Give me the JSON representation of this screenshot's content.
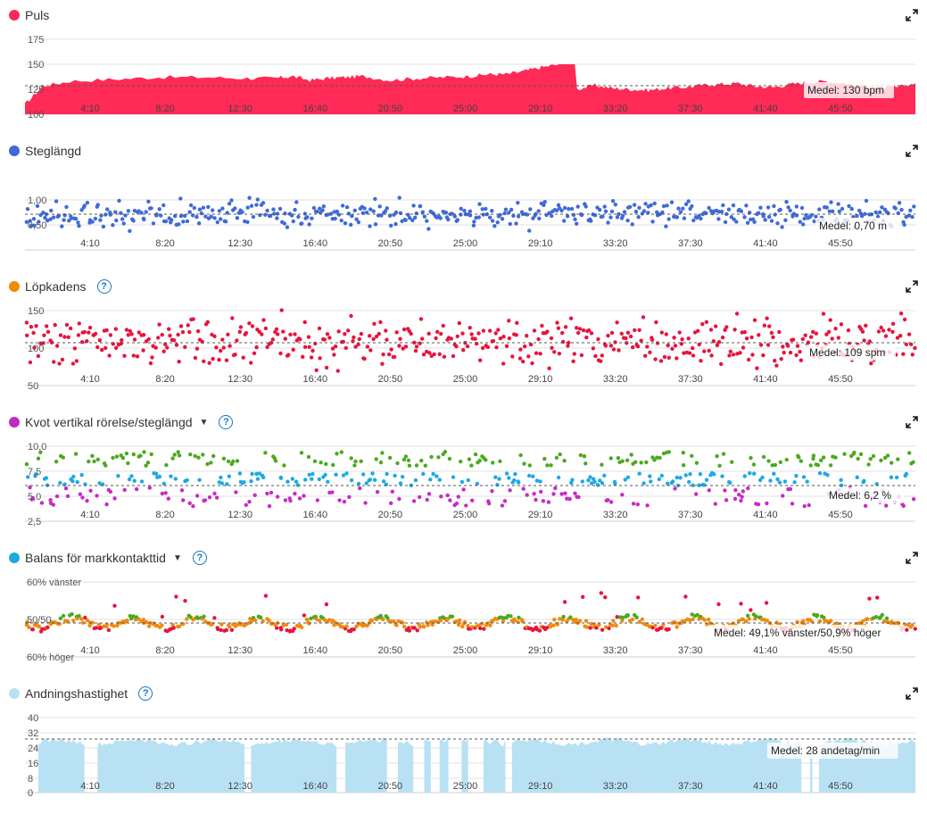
{
  "x_ticks": [
    "4:10",
    "8:20",
    "12:30",
    "16:40",
    "20:50",
    "25:00",
    "29:10",
    "33:20",
    "37:30",
    "41:40",
    "45:50"
  ],
  "colors": {
    "pulse": "#ff2a55",
    "stride": "#3f6ad8",
    "cadence_dot": "#f08a00",
    "cadence": "#e8143d",
    "ratio_dot": "#c02ac4",
    "ratio_green": "#4ca820",
    "ratio_blue": "#1da9e2",
    "ratio_purple": "#c62cc4",
    "balance_dot": "#1da9e2",
    "balance_orange": "#ee8a10",
    "balance_green": "#4ca820",
    "balance_red": "#e8143d",
    "breath": "#b9e1f4",
    "breath_dot": "#b9e1f4",
    "help": "#1a73c8"
  },
  "panels": [
    {
      "id": "puls",
      "title": "Puls",
      "help": false,
      "dropdown": false,
      "yticks": [
        "175",
        "150",
        "125",
        "100"
      ],
      "avg_label": "Medel: 130 bpm"
    },
    {
      "id": "steglangd",
      "title": "Steglängd",
      "help": false,
      "dropdown": false,
      "yticks": [
        "1,00",
        "0,50"
      ],
      "avg_label": "Medel: 0,70 m"
    },
    {
      "id": "lopkadens",
      "title": "Löpkadens",
      "help": true,
      "dropdown": false,
      "yticks": [
        "150",
        "100",
        "50"
      ],
      "avg_label": "Medel: 109 spm"
    },
    {
      "id": "kvot",
      "title": "Kvot vertikal rörelse/steglängd",
      "help": true,
      "dropdown": true,
      "yticks": [
        "10,0",
        "7,5",
        "5,0",
        "2,5"
      ],
      "avg_label": "Medel: 6,2 %"
    },
    {
      "id": "balans",
      "title": "Balans för markkontakttid",
      "help": true,
      "dropdown": true,
      "yticks": [
        "60% vänster",
        "50/50",
        "60% höger"
      ],
      "avg_label": "Medel: 49,1% vänster/50,9% höger"
    },
    {
      "id": "andning",
      "title": "Andningshastighet",
      "help": true,
      "dropdown": false,
      "yticks": [
        "40",
        "32",
        "24",
        "16",
        "8",
        "0"
      ],
      "avg_label": "Medel: 28 andetag/min"
    }
  ],
  "chart_data": [
    {
      "type": "area",
      "title": "Puls",
      "ylim": [
        100,
        175
      ],
      "mean": 130,
      "x_ticks": [
        "4:10",
        "8:20",
        "12:30",
        "16:40",
        "20:50",
        "25:00",
        "29:10",
        "33:20",
        "37:30",
        "41:40",
        "45:50"
      ],
      "series": [
        {
          "name": "Puls",
          "x": [
            0,
            2,
            5,
            10,
            15,
            20,
            25,
            28,
            30,
            32,
            34,
            36,
            38,
            41,
            44,
            47,
            50,
            52,
            54,
            56,
            58,
            60,
            62,
            64,
            66,
            68,
            70,
            72,
            74,
            76,
            78,
            80,
            82,
            84,
            86,
            88,
            90,
            92,
            94,
            96,
            98,
            100
          ],
          "y": [
            110,
            128,
            133,
            135,
            137,
            137,
            136,
            136,
            138,
            134,
            136,
            137,
            138,
            134,
            136,
            137,
            138,
            140,
            140,
            143,
            147,
            150,
            125,
            129,
            126,
            125,
            124,
            126,
            127,
            129,
            130,
            131,
            128,
            127,
            130,
            132,
            133,
            131,
            128,
            126,
            127,
            131
          ]
        }
      ]
    },
    {
      "type": "scatter",
      "title": "Steglängd",
      "ylim": [
        0.25,
        1.25
      ],
      "mean": 0.7,
      "x_ticks": [
        "4:10",
        "8:20",
        "12:30",
        "16:40",
        "20:50",
        "25:00",
        "29:10",
        "33:20",
        "37:30",
        "41:40",
        "45:50"
      ],
      "series": [
        {
          "name": "Steglängd",
          "x_range": [
            0,
            100
          ],
          "y_center": 0.72,
          "y_spread": 0.18
        }
      ]
    },
    {
      "type": "scatter",
      "title": "Löpkadens",
      "ylim": [
        50,
        150
      ],
      "mean": 109,
      "x_ticks": [
        "4:10",
        "8:20",
        "12:30",
        "16:40",
        "20:50",
        "25:00",
        "29:10",
        "33:20",
        "37:30",
        "41:40",
        "45:50"
      ],
      "series": [
        {
          "name": "Löpkadens",
          "x_range": [
            0,
            100
          ],
          "y_center": 110,
          "y_spread": 16
        }
      ]
    },
    {
      "type": "scatter",
      "title": "Kvot vertikal rörelse/steglängd",
      "ylim": [
        2.5,
        10.0
      ],
      "mean": 6.2,
      "x_ticks": [
        "4:10",
        "8:20",
        "12:30",
        "16:40",
        "20:50",
        "25:00",
        "29:10",
        "33:20",
        "37:30",
        "41:40",
        "45:50"
      ],
      "series": [
        {
          "name": "Kvot",
          "x_range": [
            0,
            100
          ],
          "y_center": 6.2,
          "y_spread": 1.4
        }
      ]
    },
    {
      "type": "scatter",
      "title": "Balans för markkontakttid",
      "ylim": [
        -10,
        10
      ],
      "mean": -0.9,
      "x_ticks": [
        "4:10",
        "8:20",
        "12:30",
        "16:40",
        "20:50",
        "25:00",
        "29:10",
        "33:20",
        "37:30",
        "41:40",
        "45:50"
      ],
      "series": [
        {
          "name": "Balans",
          "x_range": [
            0,
            100
          ],
          "y_center": 0,
          "y_spread": 1.6
        }
      ]
    },
    {
      "type": "area",
      "title": "Andningshastighet",
      "ylim": [
        0,
        40
      ],
      "mean": 28,
      "x_ticks": [
        "4:10",
        "8:20",
        "12:30",
        "16:40",
        "20:50",
        "25:00",
        "29:10",
        "33:20",
        "37:30",
        "41:40",
        "45:50"
      ],
      "series": [
        {
          "name": "Andningshastighet",
          "x_range": [
            0,
            100
          ],
          "y_center": 27
        }
      ]
    }
  ]
}
